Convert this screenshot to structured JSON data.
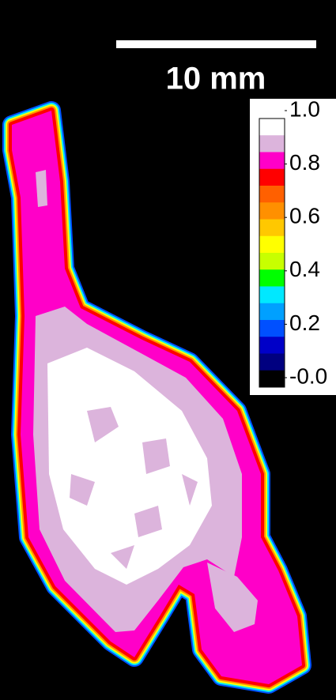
{
  "scale_bar": {
    "label": "10 mm"
  },
  "colorbar": {
    "colors": [
      "#ffffff",
      "#dcb4dc",
      "#ff00c8",
      "#ff0000",
      "#ff6000",
      "#ff9000",
      "#ffc800",
      "#ffff00",
      "#c8ff00",
      "#00ff00",
      "#00e8ff",
      "#00a0ff",
      "#0050ff",
      "#0000c8",
      "#000080",
      "#000000"
    ],
    "clim": [
      0,
      1
    ],
    "ticks": [
      {
        "value": 1,
        "label": "1.0"
      },
      0.8,
      0.6,
      0.4,
      0.2,
      {
        "value": 0,
        "label": "-0.0"
      }
    ]
  }
}
